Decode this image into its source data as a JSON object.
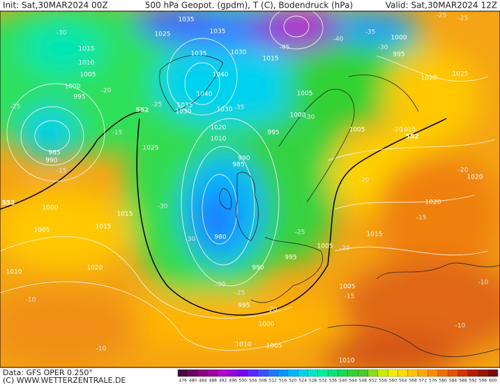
{
  "header": {
    "init": "Init: Sat,30MAR2024 00Z",
    "title": "500 hPa Geopot. (gpdm), T (C), Bodendruck (hPa)",
    "valid": "Valid: Sat,30MAR2024 12Z"
  },
  "map": {
    "pressure_labels": [
      1035,
      1025,
      1035,
      1035,
      1030,
      1040,
      1040,
      1035,
      1030,
      1030,
      1020,
      1010,
      1015,
      1010,
      1005,
      1000,
      995,
      985,
      990,
      1025,
      990,
      985,
      980,
      1000,
      1005,
      1015,
      1015,
      1020,
      1010,
      1015,
      1005,
      1000,
      995,
      1005,
      1000,
      995,
      1020,
      1025,
      1015,
      1020,
      1020,
      1015,
      1005,
      995,
      990,
      995,
      1000,
      1005,
      1010,
      1005,
      1010
    ],
    "temperature_labels": [
      -30,
      -20,
      -25,
      -15,
      -15,
      -25,
      -35,
      -30,
      -45,
      -40,
      -35,
      -30,
      -30,
      -30,
      -25,
      -20,
      -30,
      -25,
      -20,
      -15,
      -10,
      -10,
      -10,
      -10,
      -20,
      -20,
      -15,
      -25,
      -25,
      -20
    ],
    "geopotential_labels": [
      552,
      552,
      552
    ]
  },
  "colorbar": {
    "ticks": [
      476,
      480,
      484,
      488,
      492,
      496,
      500,
      504,
      508,
      512,
      516,
      520,
      524,
      528,
      532,
      536,
      540,
      544,
      548,
      552,
      556,
      560,
      564,
      568,
      572,
      576,
      580,
      584,
      588,
      592,
      596,
      600
    ],
    "colors": [
      "#4b0040",
      "#6a0060",
      "#8a0080",
      "#a000a0",
      "#b400c8",
      "#9600dc",
      "#7800f0",
      "#5a28ff",
      "#3c50ff",
      "#1e78ff",
      "#0096ff",
      "#00b4ff",
      "#00d2f0",
      "#00e6c8",
      "#00f0a0",
      "#00e678",
      "#14dc50",
      "#32d232",
      "#50c828",
      "#8cdc1e",
      "#c8f000",
      "#f0f000",
      "#ffdc00",
      "#ffc300",
      "#ffaa00",
      "#ff8c00",
      "#f06e00",
      "#e65000",
      "#d23200",
      "#b41e00",
      "#961400",
      "#780a00"
    ]
  },
  "footer": {
    "data": "Data: GFS OPER 0.250°",
    "copyright": "(C) WWW.WETTERZENTRALE.DE"
  }
}
